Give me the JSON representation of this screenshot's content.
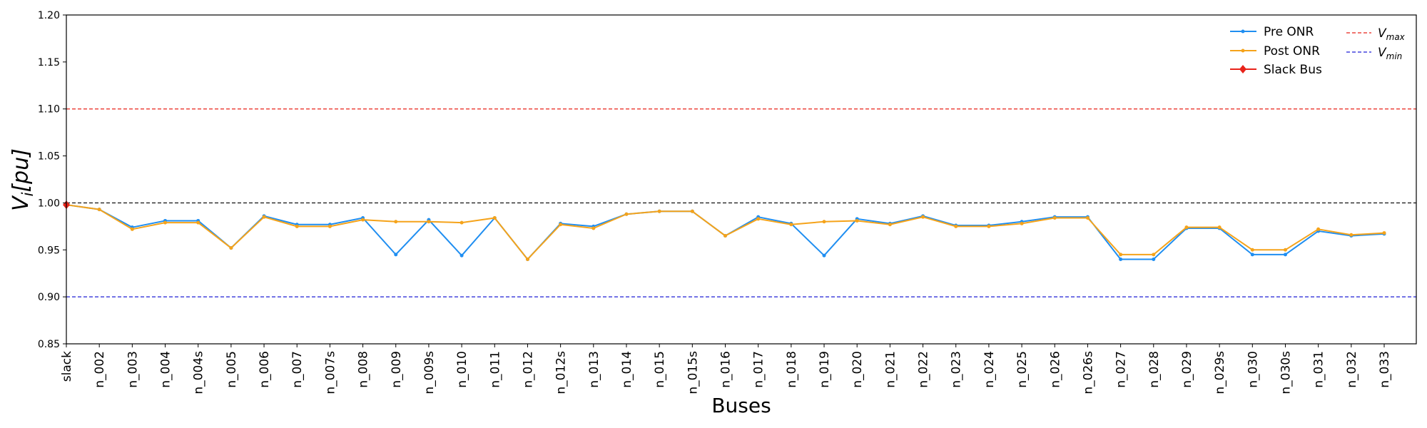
{
  "chart_data": {
    "type": "line",
    "xlabel": "Buses",
    "ylabel_main": "V",
    "ylabel_sub": "i",
    "ylabel_unit": "[pu]",
    "ylim": [
      0.85,
      1.2
    ],
    "yticks": [
      "0.85",
      "0.90",
      "0.95",
      "1.00",
      "1.05",
      "1.10",
      "1.15",
      "1.20"
    ],
    "grid": false,
    "legend_position": "top-right",
    "categories": [
      "slack",
      "n_002",
      "n_003",
      "n_004",
      "n_004s",
      "n_005",
      "n_006",
      "n_007",
      "n_007s",
      "n_008",
      "n_009",
      "n_009s",
      "n_010",
      "n_011",
      "n_012",
      "n_012s",
      "n_013",
      "n_014",
      "n_015",
      "n_015s",
      "n_016",
      "n_017",
      "n_018",
      "n_019",
      "n_020",
      "n_021",
      "n_022",
      "n_023",
      "n_024",
      "n_025",
      "n_026",
      "n_026s",
      "n_027",
      "n_028",
      "n_029",
      "n_029s",
      "n_030",
      "n_030s",
      "n_031",
      "n_032",
      "n_033"
    ],
    "series": [
      {
        "name": "Pre ONR",
        "color": "#1f8ef1",
        "values": [
          0.998,
          0.993,
          0.974,
          0.981,
          0.981,
          0.952,
          0.986,
          0.977,
          0.977,
          0.984,
          0.945,
          0.982,
          0.944,
          0.984,
          0.94,
          0.978,
          0.975,
          0.988,
          0.991,
          0.991,
          0.965,
          0.985,
          0.978,
          0.944,
          0.983,
          0.978,
          0.986,
          0.976,
          0.976,
          0.98,
          0.985,
          0.985,
          0.94,
          0.94,
          0.973,
          0.973,
          0.945,
          0.945,
          0.97,
          0.965,
          0.967
        ]
      },
      {
        "name": "Post ONR",
        "color": "#f5a31a",
        "values": [
          0.998,
          0.993,
          0.972,
          0.979,
          0.979,
          0.952,
          0.985,
          0.975,
          0.975,
          0.982,
          0.98,
          0.98,
          0.979,
          0.984,
          0.94,
          0.977,
          0.973,
          0.988,
          0.991,
          0.991,
          0.965,
          0.983,
          0.977,
          0.98,
          0.981,
          0.977,
          0.985,
          0.975,
          0.975,
          0.978,
          0.984,
          0.984,
          0.945,
          0.945,
          0.974,
          0.974,
          0.95,
          0.95,
          0.972,
          0.966,
          0.968
        ]
      }
    ],
    "slack_bus": {
      "name": "Slack Bus",
      "color": "#e8231a",
      "x": "slack",
      "y": 0.998
    },
    "reference_lines": [
      {
        "name_main": "V",
        "name_sub": "max",
        "y": 1.1,
        "color": "#e8231a",
        "style": "dashed"
      },
      {
        "name_main": "V",
        "name_sub": "min",
        "y": 0.9,
        "color": "#1f1fd6",
        "style": "dashed"
      },
      {
        "y": 1.0,
        "color": "#222222",
        "style": "dashed"
      }
    ]
  }
}
